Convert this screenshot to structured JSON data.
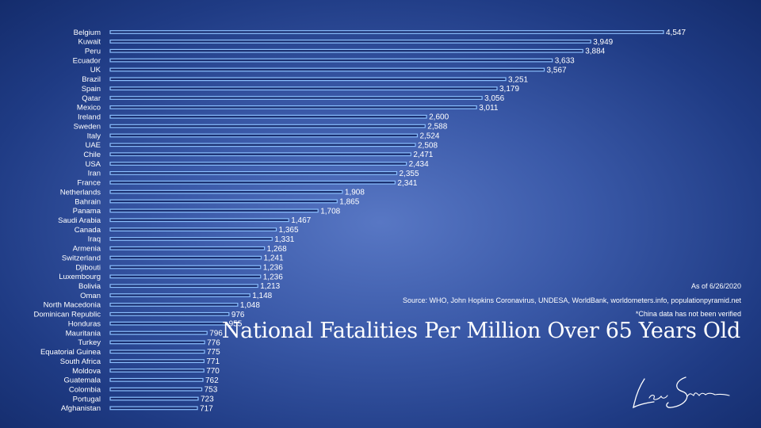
{
  "chart_data": {
    "type": "bar",
    "orientation": "horizontal",
    "title": "National Fatalities Per Million Over 65 Years Old",
    "xlim": [
      0,
      4547
    ],
    "grid": false,
    "categories": [
      "Belgium",
      "Kuwait",
      "Peru",
      "Ecuador",
      "UK",
      "Brazil",
      "Spain",
      "Qatar",
      "Mexico",
      "Ireland",
      "Sweden",
      "Italy",
      "UAE",
      "Chile",
      "USA",
      "Iran",
      "France",
      "Netherlands",
      "Bahrain",
      "Panama",
      "Saudi Arabia",
      "Canada",
      "Iraq",
      "Armenia",
      "Switzerland",
      "Djibouti",
      "Luxembourg",
      "Bolivia",
      "Oman",
      "North Macedonia",
      "Dominican Republic",
      "Honduras",
      "Mauritania",
      "Turkey",
      "Equatorial Guinea",
      "South Africa",
      "Moldova",
      "Guatemala",
      "Colombia",
      "Portugal",
      "Afghanistan"
    ],
    "values": [
      4547,
      3949,
      3884,
      3633,
      3567,
      3251,
      3179,
      3056,
      3011,
      2600,
      2588,
      2524,
      2508,
      2471,
      2434,
      2355,
      2341,
      1908,
      1865,
      1708,
      1467,
      1365,
      1331,
      1268,
      1241,
      1236,
      1236,
      1213,
      1148,
      1048,
      976,
      955,
      796,
      776,
      775,
      771,
      770,
      762,
      753,
      723,
      717
    ],
    "value_labels": [
      "4,547",
      "3,949",
      "3,884",
      "3,633",
      "3,567",
      "3,251",
      "3,179",
      "3,056",
      "3,011",
      "2,600",
      "2,588",
      "2,524",
      "2,508",
      "2,471",
      "2,434",
      "2,355",
      "2,341",
      "1,908",
      "1,865",
      "1,708",
      "1,467",
      "1,365",
      "1,331",
      "1,268",
      "1,241",
      "1,236",
      "1,236",
      "1,213",
      "1,148",
      "1,048",
      "976",
      "955",
      "796",
      "776",
      "775",
      "771",
      "770",
      "762",
      "753",
      "723",
      "717"
    ],
    "bar_fill": "#1a2f70",
    "bar_outline": "#8cc0ff"
  },
  "notes": {
    "as_of": "As of 6/26/2020",
    "source": "Source: WHO, John Hopkins Coronavirus, UNDESA, WorldBank, worldometers.info, populationpyramid.net",
    "china": "*China data has not been verified"
  },
  "title": "National Fatalities Per Million Over 65 Years Old",
  "colors": {
    "background": "#2b4a9a",
    "text": "#ffffff"
  }
}
